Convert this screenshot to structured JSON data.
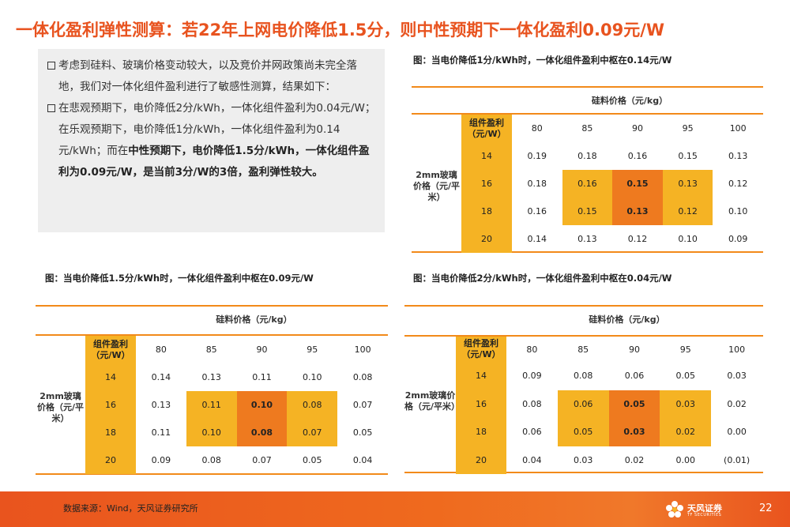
{
  "title": "一体化盈利弹性测算：若22年上网电价降低1.5分，则中性预期下一体化盈利0.09元/W",
  "textbox": {
    "p1": "考虑到硅料、玻璃价格变动较大，以及竞价并网政策尚未完全落地，我们对一体化组件盈利进行了敏感性测算，结果如下：",
    "p2_a": "在悲观预期下，电价降低2分/kWh，一体化组件盈利为0.04元/W；在乐观预期下，电价降低1分/kWh，一体化组件盈利为0.14元/kWh；而在",
    "p2_b": "中性预期下，电价降低1.5分/kWh，一体化组件盈利为0.09元/W，是当前3分/W的3倍，盈利弹性较大。"
  },
  "tables": [
    {
      "caption": "图：当电价降低1分/kWh时，一体化组件盈利中枢在0.14元/W",
      "col_group": "硅料价格（元/kg）",
      "corner": "组件盈利（元/W）",
      "row_group": "2mm玻璃价格（元/平米）",
      "cols": [
        "80",
        "85",
        "90",
        "95",
        "100"
      ],
      "rows": [
        "14",
        "16",
        "18",
        "20"
      ],
      "values": [
        [
          "0.19",
          "0.18",
          "0.16",
          "0.15",
          "0.13"
        ],
        [
          "0.18",
          "0.16",
          "0.15",
          "0.13",
          "0.12"
        ],
        [
          "0.16",
          "0.15",
          "0.13",
          "0.12",
          "0.10"
        ],
        [
          "0.14",
          "0.13",
          "0.12",
          "0.10",
          "0.09"
        ]
      ]
    },
    {
      "caption": "图：当电价降低1.5分/kWh时，一体化组件盈利中枢在0.09元/W",
      "col_group": "硅料价格（元/kg）",
      "corner": "组件盈利（元/W）",
      "row_group": "2mm玻璃价格（元/平米）",
      "cols": [
        "80",
        "85",
        "90",
        "95",
        "100"
      ],
      "rows": [
        "14",
        "16",
        "18",
        "20"
      ],
      "values": [
        [
          "0.14",
          "0.13",
          "0.11",
          "0.10",
          "0.08"
        ],
        [
          "0.13",
          "0.11",
          "0.10",
          "0.08",
          "0.07"
        ],
        [
          "0.11",
          "0.10",
          "0.08",
          "0.07",
          "0.05"
        ],
        [
          "0.09",
          "0.08",
          "0.07",
          "0.05",
          "0.04"
        ]
      ]
    },
    {
      "caption": "图：当电价降低2分/kWh时，一体化组件盈利中枢在0.04元/W",
      "col_group": "硅料价格（元/kg）",
      "corner": "组件盈利（元/W）",
      "row_group": "2mm玻璃价格（元/平米）",
      "cols": [
        "80",
        "85",
        "90",
        "95",
        "100"
      ],
      "rows": [
        "14",
        "16",
        "18",
        "20"
      ],
      "values": [
        [
          "0.09",
          "0.08",
          "0.06",
          "0.05",
          "0.03"
        ],
        [
          "0.08",
          "0.06",
          "0.05",
          "0.03",
          "0.02"
        ],
        [
          "0.06",
          "0.05",
          "0.03",
          "0.02",
          "0.00"
        ],
        [
          "0.04",
          "0.03",
          "0.02",
          "0.00",
          "(0.01)"
        ]
      ]
    }
  ],
  "footer": {
    "source": "数据来源：Wind，天风证券研究所",
    "logo_name": "天风证券",
    "logo_en": "TF SECURITIES",
    "page": "22"
  },
  "colors": {
    "title": "#e8531f",
    "accent_line": "#f28a1a",
    "highlight_light": "#f5b324",
    "highlight_dark": "#ee7a1f",
    "footer": "#e9541e"
  }
}
